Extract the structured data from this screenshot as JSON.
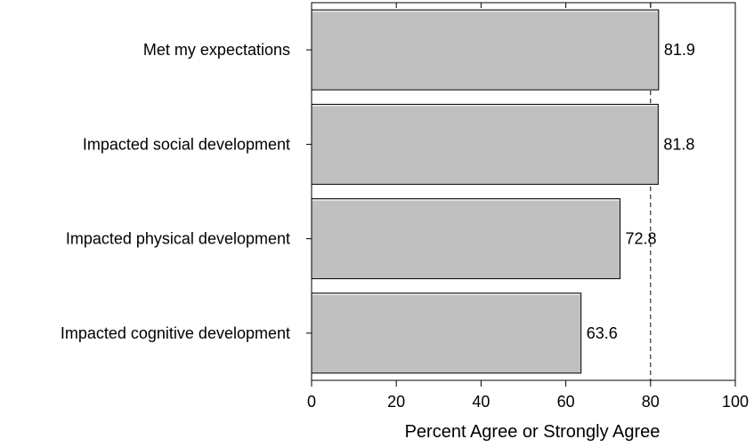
{
  "chart_data": {
    "type": "bar",
    "orientation": "horizontal",
    "categories": [
      "Met my expectations",
      "Impacted social development",
      "Impacted physical development",
      "Impacted cognitive development"
    ],
    "values": [
      81.9,
      81.8,
      72.8,
      63.6
    ],
    "data_labels": [
      "81.9",
      "81.8",
      "72.8",
      "63.6"
    ],
    "xlabel": "Percent Agree or Strongly Agree",
    "ylabel": "",
    "title": "",
    "xlim": [
      0,
      100
    ],
    "xticks": [
      0,
      20,
      40,
      60,
      80,
      100
    ],
    "xtick_labels": [
      "0",
      "20",
      "40",
      "60",
      "80",
      "100"
    ],
    "reference_line": 80,
    "bar_color": "#c0c0c0",
    "bar_edge_color": "#000000",
    "grid": false,
    "legend": "none"
  }
}
